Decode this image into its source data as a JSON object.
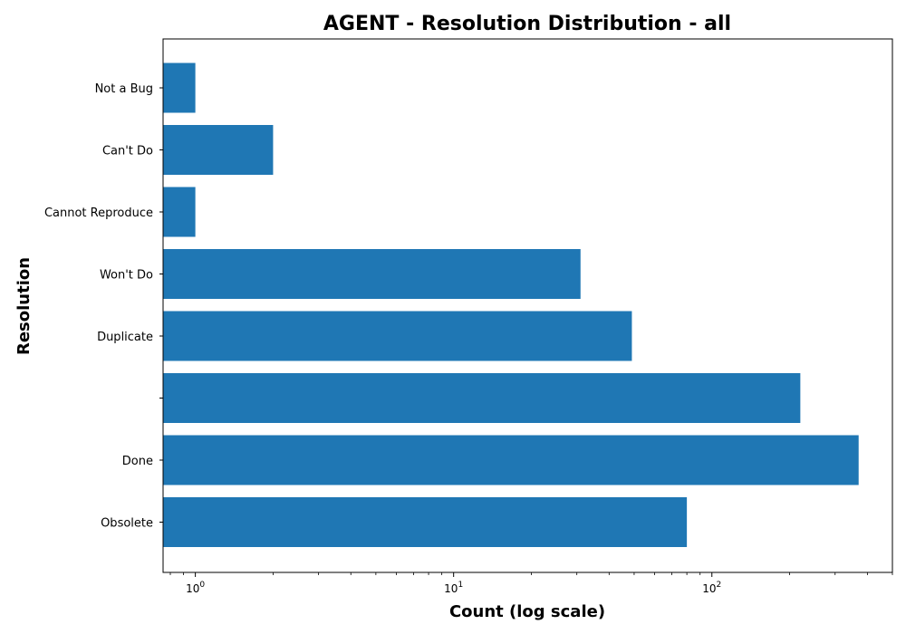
{
  "chart_data": {
    "type": "bar",
    "orientation": "horizontal",
    "title": "AGENT - Resolution Distribution - all",
    "xlabel": "Count (log scale)",
    "ylabel": "Resolution",
    "x_scale": "log",
    "xlim": [
      0.75,
      500
    ],
    "x_ticks": [
      {
        "value": 1,
        "base": "10",
        "exp": "0"
      },
      {
        "value": 10,
        "base": "10",
        "exp": "1"
      },
      {
        "value": 100,
        "base": "10",
        "exp": "2"
      }
    ],
    "categories": [
      "Obsolete",
      "Done",
      "",
      "Duplicate",
      "Won't Do",
      "Cannot Reproduce",
      "Can't Do",
      "Not a Bug"
    ],
    "values": [
      80,
      370,
      220,
      49,
      31,
      1,
      2,
      1
    ],
    "bar_color": "#1f77b4",
    "grid": false,
    "legend": "none"
  }
}
